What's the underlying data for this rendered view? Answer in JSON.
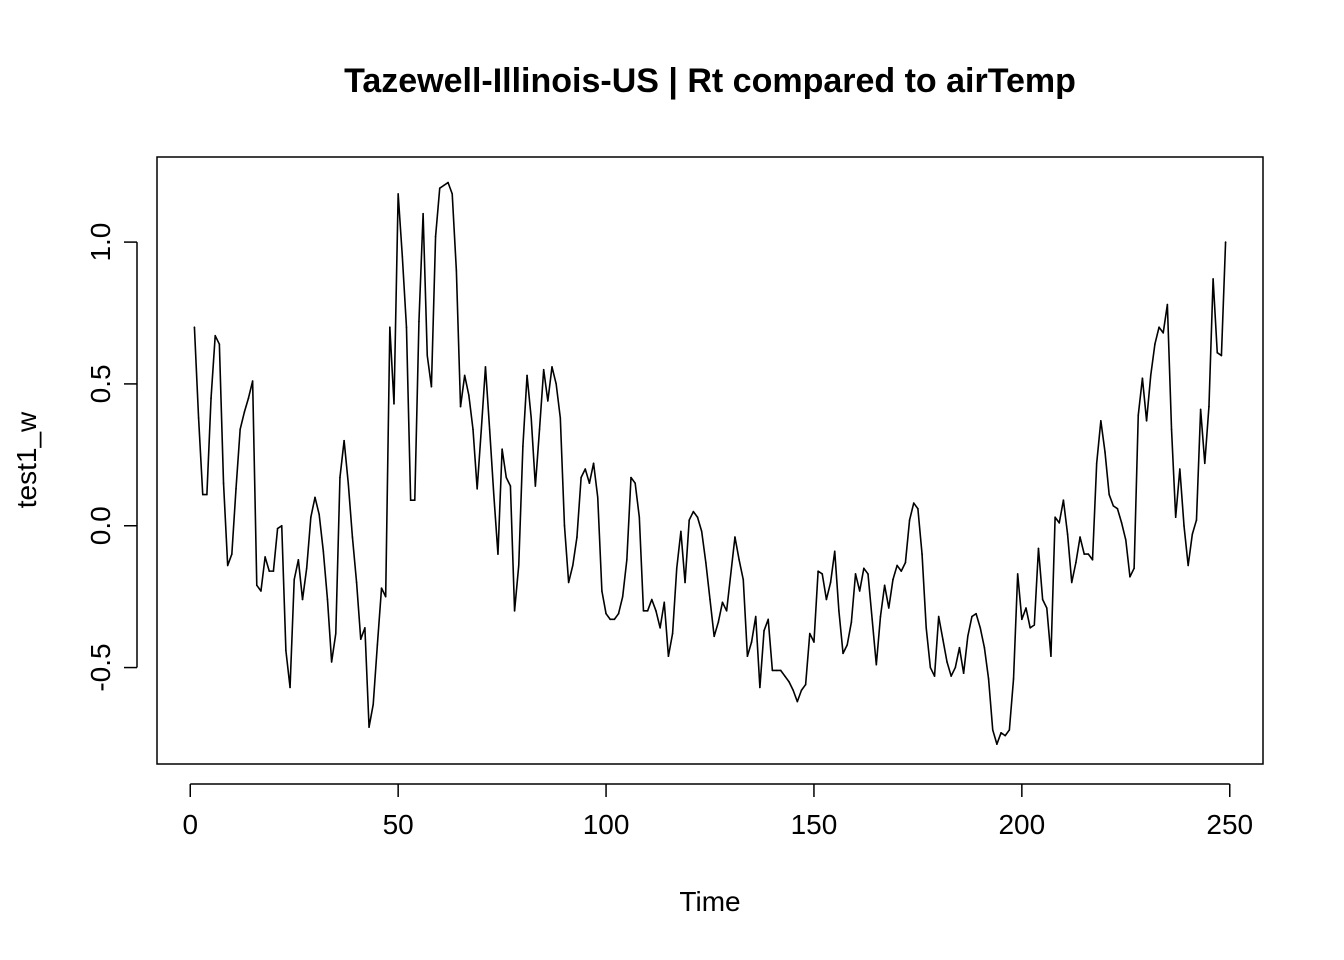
{
  "chart_data": {
    "type": "line",
    "title": "Tazewell-Illinois-US | Rt compared to airTemp",
    "xlabel": "Time",
    "ylabel": "test1_w",
    "xlim": [
      -8,
      258
    ],
    "ylim": [
      -0.84,
      1.3
    ],
    "x_ticks": [
      0,
      50,
      100,
      150,
      200,
      250
    ],
    "x_tick_labels": [
      "0",
      "50",
      "100",
      "150",
      "200",
      "250"
    ],
    "y_ticks": [
      -0.5,
      0.0,
      0.5,
      1.0
    ],
    "y_tick_labels": [
      "-0.5",
      "0.0",
      "0.5",
      "1.0"
    ],
    "grid": false,
    "legend": "none",
    "series": [
      {
        "color": "#000000",
        "x_start": 1,
        "x_step": 1,
        "values": [
          0.7,
          0.38,
          0.11,
          0.11,
          0.45,
          0.67,
          0.64,
          0.15,
          -0.14,
          -0.1,
          0.13,
          0.34,
          0.4,
          0.45,
          0.51,
          -0.21,
          -0.23,
          -0.11,
          -0.16,
          -0.16,
          -0.01,
          0.0,
          -0.44,
          -0.57,
          -0.19,
          -0.12,
          -0.26,
          -0.15,
          0.03,
          0.1,
          0.04,
          -0.09,
          -0.26,
          -0.48,
          -0.38,
          0.17,
          0.3,
          0.15,
          -0.04,
          -0.2,
          -0.4,
          -0.36,
          -0.71,
          -0.63,
          -0.42,
          -0.22,
          -0.25,
          0.7,
          0.43,
          1.17,
          0.95,
          0.7,
          0.09,
          0.09,
          0.72,
          1.1,
          0.6,
          0.49,
          1.02,
          1.19,
          1.2,
          1.21,
          1.17,
          0.9,
          0.42,
          0.53,
          0.46,
          0.34,
          0.13,
          0.34,
          0.56,
          0.34,
          0.11,
          -0.1,
          0.27,
          0.17,
          0.14,
          -0.3,
          -0.14,
          0.28,
          0.53,
          0.38,
          0.14,
          0.34,
          0.55,
          0.44,
          0.56,
          0.5,
          0.38,
          0.0,
          -0.2,
          -0.14,
          -0.04,
          0.17,
          0.2,
          0.15,
          0.22,
          0.1,
          -0.23,
          -0.31,
          -0.33,
          -0.33,
          -0.31,
          -0.25,
          -0.12,
          0.17,
          0.15,
          0.03,
          -0.3,
          -0.3,
          -0.26,
          -0.3,
          -0.36,
          -0.27,
          -0.46,
          -0.38,
          -0.15,
          -0.02,
          -0.2,
          0.02,
          0.05,
          0.03,
          -0.02,
          -0.13,
          -0.26,
          -0.39,
          -0.34,
          -0.27,
          -0.3,
          -0.17,
          -0.04,
          -0.12,
          -0.19,
          -0.46,
          -0.41,
          -0.32,
          -0.57,
          -0.37,
          -0.33,
          -0.51,
          -0.51,
          -0.51,
          -0.53,
          -0.55,
          -0.58,
          -0.62,
          -0.58,
          -0.56,
          -0.38,
          -0.41,
          -0.16,
          -0.17,
          -0.26,
          -0.2,
          -0.09,
          -0.3,
          -0.45,
          -0.42,
          -0.34,
          -0.17,
          -0.23,
          -0.15,
          -0.17,
          -0.33,
          -0.49,
          -0.32,
          -0.21,
          -0.29,
          -0.19,
          -0.14,
          -0.16,
          -0.13,
          0.02,
          0.08,
          0.06,
          -0.1,
          -0.36,
          -0.5,
          -0.53,
          -0.32,
          -0.4,
          -0.48,
          -0.53,
          -0.5,
          -0.43,
          -0.52,
          -0.39,
          -0.32,
          -0.31,
          -0.36,
          -0.43,
          -0.54,
          -0.72,
          -0.77,
          -0.73,
          -0.74,
          -0.72,
          -0.54,
          -0.17,
          -0.33,
          -0.29,
          -0.36,
          -0.35,
          -0.08,
          -0.26,
          -0.29,
          -0.46,
          0.03,
          0.01,
          0.09,
          -0.03,
          -0.2,
          -0.13,
          -0.04,
          -0.1,
          -0.1,
          -0.12,
          0.22,
          0.37,
          0.26,
          0.11,
          0.07,
          0.06,
          0.01,
          -0.05,
          -0.18,
          -0.15,
          0.39,
          0.52,
          0.37,
          0.53,
          0.64,
          0.7,
          0.68,
          0.78,
          0.34,
          0.03,
          0.2,
          0.0,
          -0.14,
          -0.03,
          0.02,
          0.41,
          0.22,
          0.42,
          0.87,
          0.61,
          0.6,
          1.0
        ]
      }
    ]
  }
}
